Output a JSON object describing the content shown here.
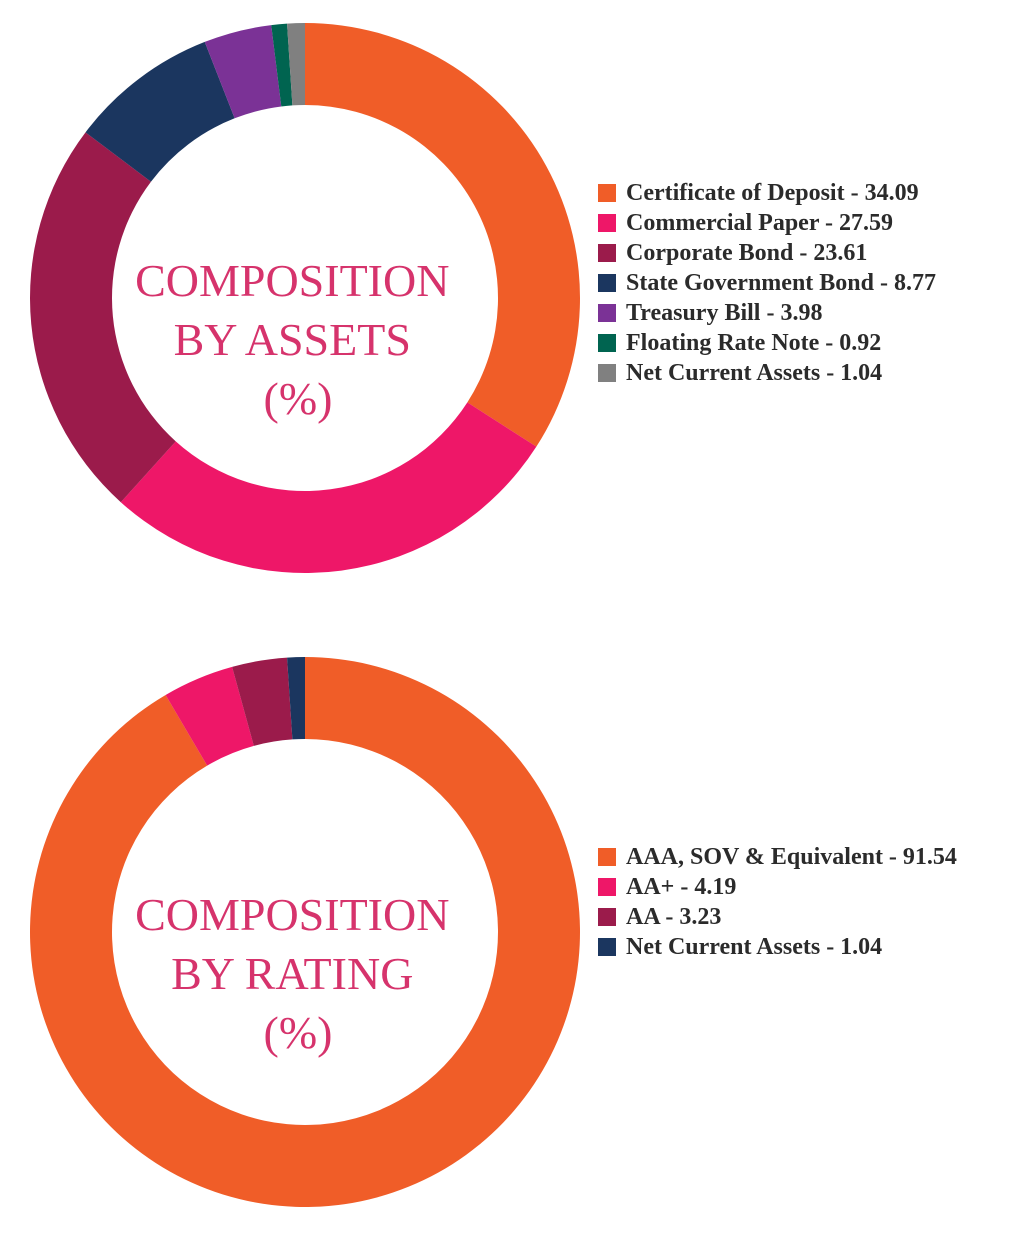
{
  "chart_data": [
    {
      "type": "pie",
      "center_title": [
        "COMPOSITION",
        "BY ASSETS",
        "(%)"
      ],
      "legend_placement": "right",
      "slices": [
        {
          "label": "Certificate of Deposit - 34.09",
          "value": 34.09,
          "color": "#f05d28"
        },
        {
          "label": "Commercial Paper - 27.59",
          "value": 27.59,
          "color": "#ee1768"
        },
        {
          "label": "Corporate Bond - 23.61",
          "value": 23.61,
          "color": "#9b1b4b"
        },
        {
          "label": "State Government Bond - 8.77",
          "value": 8.77,
          "color": "#1b365f"
        },
        {
          "label": "Treasury Bill - 3.98",
          "value": 3.98,
          "color": "#7b3296"
        },
        {
          "label": "Floating Rate Note - 0.92",
          "value": 0.92,
          "color": "#006450"
        },
        {
          "label": "Net Current Assets - 1.04",
          "value": 1.04,
          "color": "#808080"
        }
      ]
    },
    {
      "type": "pie",
      "center_title": [
        "COMPOSITION",
        "BY RATING",
        "(%)"
      ],
      "legend_placement": "right",
      "slices": [
        {
          "label": "AAA, SOV & Equivalent - 91.54",
          "value": 91.54,
          "color": "#f05d28"
        },
        {
          "label": "AA+ - 4.19",
          "value": 4.19,
          "color": "#ee1768"
        },
        {
          "label": "AA - 3.23",
          "value": 3.23,
          "color": "#9b1b4b"
        },
        {
          "label": "Net Current Assets - 1.04",
          "value": 1.04,
          "color": "#1b365f"
        }
      ]
    }
  ]
}
